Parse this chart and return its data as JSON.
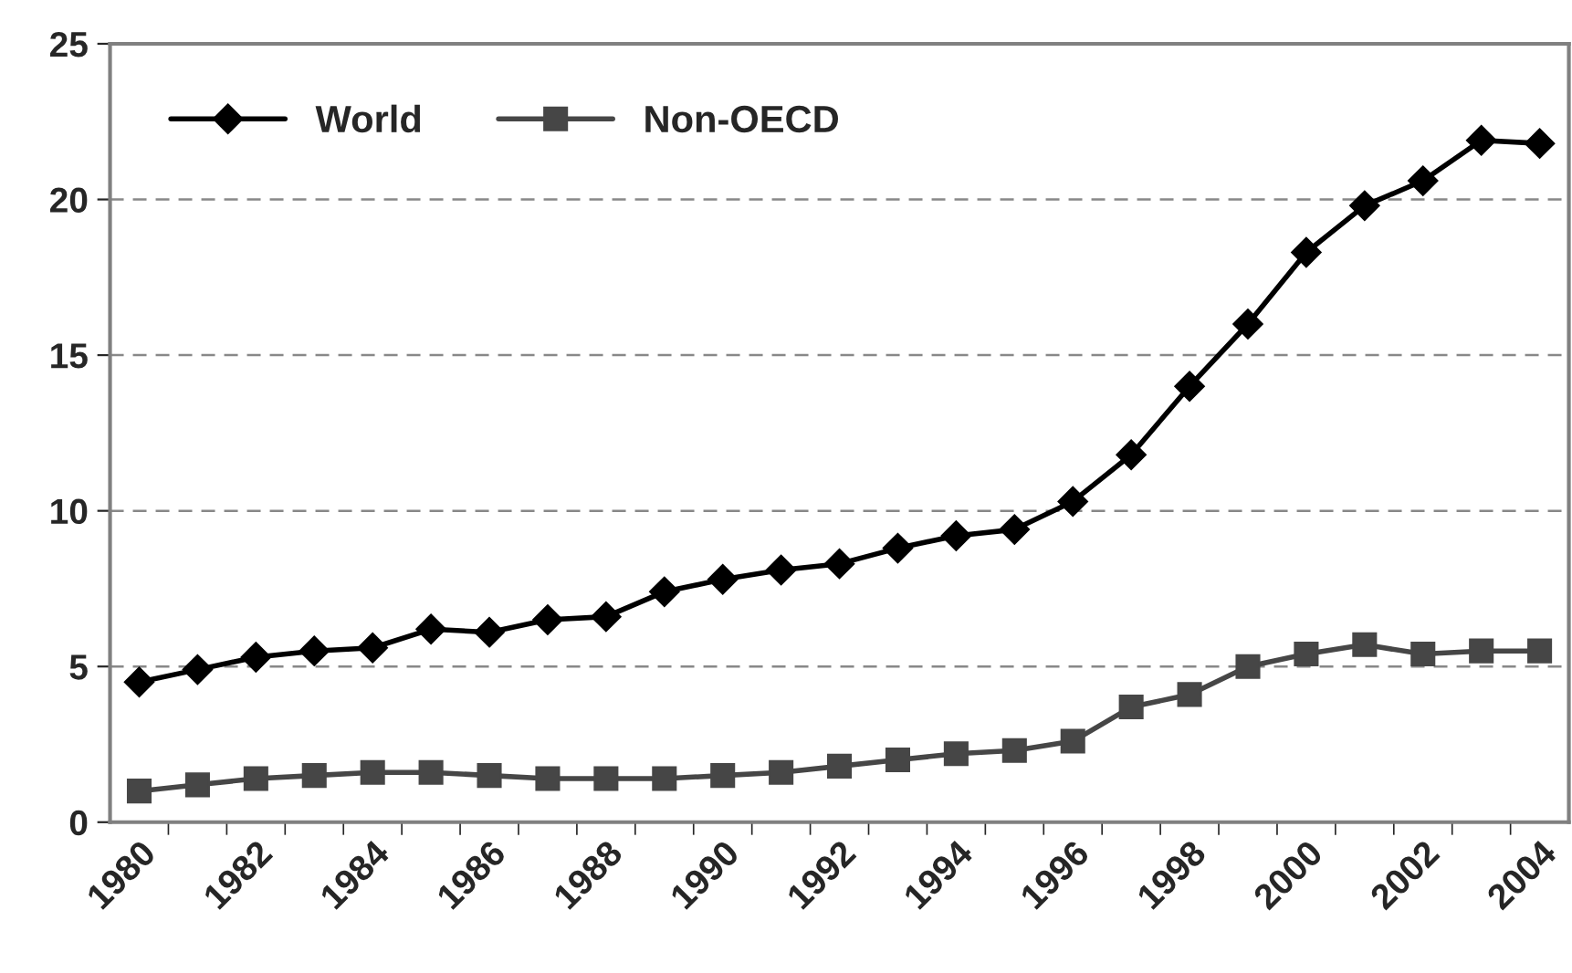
{
  "chart_data": {
    "type": "line",
    "categories": [
      "1980",
      null,
      "1982",
      null,
      "1984",
      null,
      "1986",
      null,
      "1988",
      null,
      "1990",
      null,
      "1992",
      null,
      "1994",
      null,
      "1996",
      null,
      "1998",
      null,
      "2000",
      null,
      "2002",
      null,
      "2004"
    ],
    "series": [
      {
        "name": "World",
        "color": "#000000",
        "marker": "diamond",
        "values": [
          4.5,
          4.9,
          5.3,
          5.5,
          5.6,
          6.2,
          6.1,
          6.5,
          6.6,
          7.4,
          7.8,
          8.1,
          8.3,
          8.8,
          9.2,
          9.4,
          10.3,
          11.8,
          14.0,
          16.0,
          18.3,
          19.8,
          20.6,
          21.9,
          21.8
        ]
      },
      {
        "name": "Non-OECD",
        "color": "#464646",
        "marker": "square",
        "values": [
          1.0,
          1.2,
          1.4,
          1.5,
          1.6,
          1.6,
          1.5,
          1.4,
          1.4,
          1.4,
          1.5,
          1.6,
          1.8,
          2.0,
          2.2,
          2.3,
          2.6,
          3.7,
          4.1,
          5.0,
          5.4,
          5.7,
          5.4,
          5.5,
          5.5
        ]
      }
    ],
    "ylim": [
      0,
      25
    ],
    "yticks": [
      0,
      5,
      10,
      15,
      20,
      25
    ],
    "grid": "y",
    "legend": "top left"
  }
}
